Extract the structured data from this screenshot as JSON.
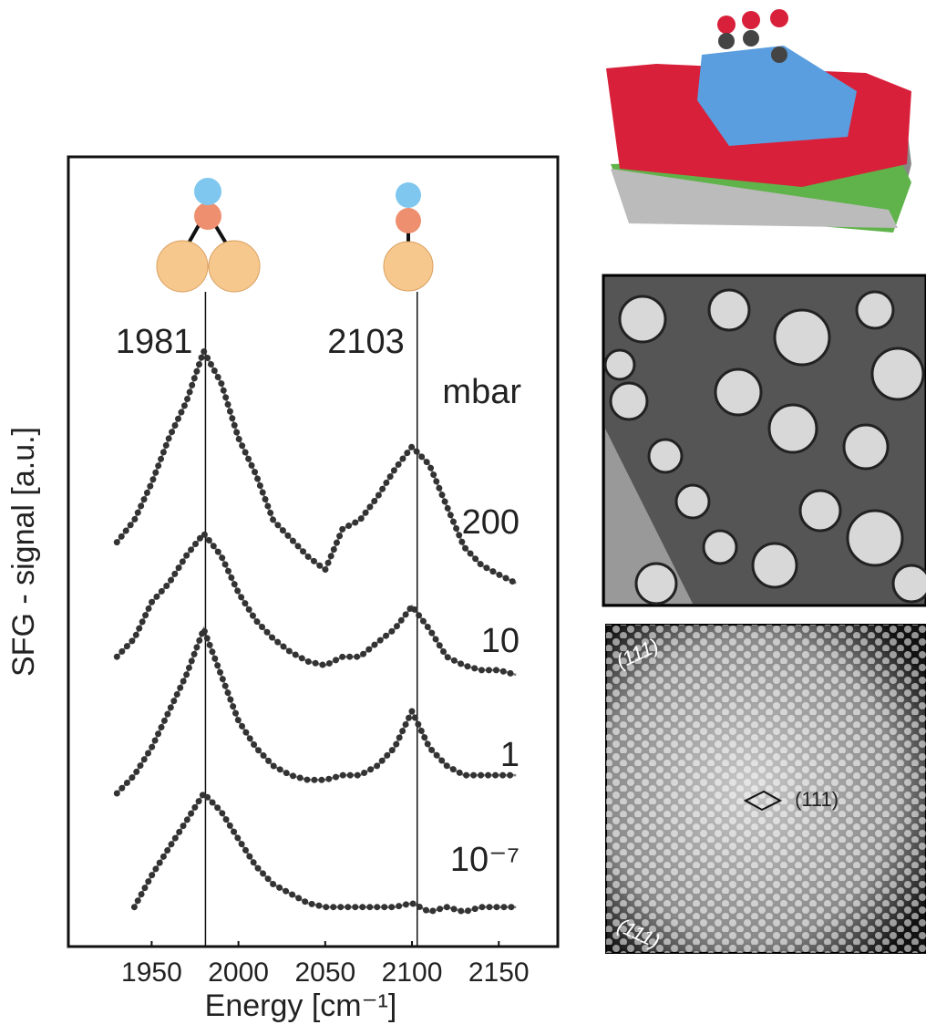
{
  "chart_data": {
    "type": "scatter",
    "xlabel": "Energy [cm⁻¹]",
    "ylabel": "SFG - signal [a.u.]",
    "xlim": [
      1902,
      2184
    ],
    "xticks": [
      1950,
      2000,
      2050,
      2100,
      2150
    ],
    "ylim": [
      0,
      100
    ],
    "reference_lines": [
      1981,
      2103
    ],
    "unit_label": "mbar",
    "x": [
      1930,
      1940,
      1950,
      1960,
      1970,
      1980,
      1990,
      2000,
      2010,
      2020,
      2030,
      2040,
      2050,
      2060,
      2070,
      2080,
      2090,
      2100,
      2110,
      2120,
      2130,
      2140,
      2150,
      2160
    ],
    "series": [
      {
        "name": "200",
        "color": "#333333",
        "values": [
          51.2,
          54.0,
          58.7,
          64.4,
          69.0,
          75.4,
          71.4,
          64.4,
          59.8,
          54.0,
          51.7,
          49.4,
          47.7,
          52.9,
          54.0,
          56.9,
          60.4,
          63.3,
          61.0,
          55.8,
          50.6,
          48.3,
          47.1,
          46.0
        ]
      },
      {
        "name": "10",
        "color": "#333333",
        "values": [
          36.7,
          39.0,
          43.6,
          46.0,
          49.5,
          52.3,
          49.5,
          44.8,
          41.3,
          39.0,
          37.3,
          36.1,
          35.6,
          36.7,
          36.7,
          38.5,
          40.2,
          43.1,
          40.2,
          36.7,
          35.6,
          35.0,
          35.0,
          34.4
        ]
      },
      {
        "name": "1",
        "color": "#333333",
        "values": [
          19.4,
          21.7,
          25.2,
          29.8,
          34.4,
          40.2,
          34.4,
          28.6,
          25.2,
          22.9,
          21.7,
          21.1,
          21.1,
          21.7,
          21.7,
          22.9,
          25.2,
          29.8,
          25.2,
          22.9,
          21.7,
          21.7,
          21.7,
          21.7
        ]
      },
      {
        "name": "10⁻⁷",
        "color": "#333333",
        "values": [
          null,
          5.0,
          9.0,
          12.5,
          15.9,
          19.4,
          17.1,
          13.6,
          10.2,
          7.9,
          6.7,
          5.5,
          5.0,
          5.0,
          5.0,
          5.0,
          5.0,
          5.5,
          4.4,
          5.0,
          4.4,
          5.0,
          5.0,
          5.0
        ]
      }
    ]
  },
  "stm_labels": [
    "(111)",
    "(111)",
    "(111)"
  ]
}
